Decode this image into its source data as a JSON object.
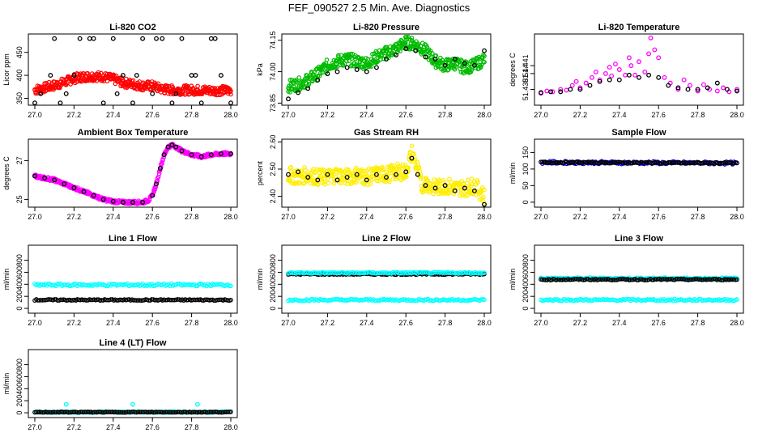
{
  "figure_title": "FEF_090527  2.5 Min. Ave. Diagnostics",
  "chart_data": [
    {
      "id": "co2",
      "type": "scatter",
      "title": "Li-820 CO2",
      "ylabel": "Licor ppm",
      "xlim": [
        27.0,
        28.0
      ],
      "ylim": [
        335,
        490
      ],
      "xticks": [
        "27.0",
        "27.2",
        "27.4",
        "27.6",
        "27.8",
        "28.0"
      ],
      "yticks": [
        "350",
        "400",
        "450"
      ],
      "series": [
        {
          "name": "raw",
          "color": "#ff0000",
          "style": "band",
          "x": [
            27.0,
            27.05,
            27.1,
            27.15,
            27.2,
            27.25,
            27.3,
            27.35,
            27.4,
            27.45,
            27.5,
            27.55,
            27.6,
            27.65,
            27.7,
            27.8,
            27.9,
            28.0
          ],
          "y": [
            368,
            373,
            378,
            385,
            393,
            397,
            398,
            397,
            392,
            384,
            381,
            377,
            377,
            370,
            368,
            368,
            367,
            367
          ],
          "spread": 10
        },
        {
          "name": "avg",
          "color": "#000000",
          "style": "points",
          "x": [
            27.0,
            27.03,
            27.1,
            27.13,
            27.2,
            27.23,
            27.3,
            27.35,
            27.4,
            27.45,
            27.5,
            27.55,
            27.6,
            27.65,
            27.7,
            27.75,
            27.8,
            27.85,
            27.9,
            27.95,
            28.0,
            27.08,
            27.16,
            27.28,
            27.42,
            27.52,
            27.62,
            27.72,
            27.82,
            27.92
          ],
          "y": [
            340,
            360,
            480,
            340,
            400,
            480,
            480,
            340,
            480,
            400,
            340,
            480,
            360,
            480,
            340,
            480,
            400,
            340,
            480,
            400,
            340,
            400,
            360,
            480,
            360,
            400,
            480,
            360,
            400,
            480
          ]
        }
      ]
    },
    {
      "id": "pressure",
      "type": "scatter",
      "title": "Li-820 Pressure",
      "ylabel": "kPa",
      "xlim": [
        27.0,
        28.0
      ],
      "ylim": [
        73.84,
        74.18
      ],
      "xticks": [
        "27.0",
        "27.2",
        "27.4",
        "27.6",
        "27.8",
        "28.0"
      ],
      "yticks": [
        "73.85",
        "74.00",
        "74.15"
      ],
      "series": [
        {
          "name": "raw",
          "color": "#00bb00",
          "style": "band",
          "x": [
            27.0,
            27.05,
            27.1,
            27.15,
            27.2,
            27.25,
            27.3,
            27.35,
            27.4,
            27.45,
            27.5,
            27.55,
            27.6,
            27.65,
            27.7,
            27.75,
            27.8,
            27.85,
            27.9,
            27.95,
            28.0
          ],
          "y": [
            73.93,
            73.94,
            73.96,
            73.99,
            74.03,
            74.05,
            74.06,
            74.05,
            74.04,
            74.07,
            74.09,
            74.11,
            74.14,
            74.13,
            74.1,
            74.05,
            74.03,
            74.04,
            74.02,
            74.03,
            74.06
          ],
          "spread": 0.03
        },
        {
          "name": "avg",
          "color": "#000000",
          "style": "points",
          "x": [
            27.0,
            27.05,
            27.1,
            27.15,
            27.2,
            27.25,
            27.3,
            27.35,
            27.4,
            27.45,
            27.5,
            27.55,
            27.6,
            27.65,
            27.7,
            27.75,
            27.8,
            27.85,
            27.9,
            27.95,
            28.0
          ],
          "y": [
            73.87,
            73.9,
            73.92,
            73.96,
            73.99,
            74.0,
            74.02,
            74.01,
            74.0,
            74.02,
            74.06,
            74.08,
            74.11,
            74.1,
            74.07,
            74.06,
            74.03,
            74.06,
            74.04,
            74.03,
            74.1
          ]
        }
      ]
    },
    {
      "id": "temperature",
      "type": "scatter",
      "title": "Li-820 Temperature",
      "ylabel": "degrees C",
      "xlim": [
        27.0,
        28.0
      ],
      "ylim": [
        51.436,
        51.445
      ],
      "xticks": [
        "27.0",
        "27.2",
        "27.4",
        "27.6",
        "27.8",
        "28.0"
      ],
      "yticks": [
        "51.438",
        "51.44",
        "51.441"
      ],
      "series": [
        {
          "name": "raw",
          "color": "#ff00ff",
          "style": "scatter",
          "x": [
            27.0,
            27.03,
            27.06,
            27.1,
            27.13,
            27.16,
            27.2,
            27.23,
            27.26,
            27.3,
            27.33,
            27.36,
            27.4,
            27.43,
            27.46,
            27.5,
            27.53,
            27.56,
            27.6,
            27.63,
            27.66,
            27.7,
            27.73,
            27.76,
            27.8,
            27.83,
            27.86,
            27.9,
            27.93,
            27.96,
            28.0,
            27.18,
            27.28,
            27.38,
            27.48,
            27.58,
            27.45,
            27.55,
            27.35
          ],
          "y": [
            51.4375,
            51.4378,
            51.4377,
            51.438,
            51.4379,
            51.4385,
            51.4382,
            51.4388,
            51.4395,
            51.4392,
            51.44,
            51.4397,
            51.4405,
            51.4398,
            51.441,
            51.4415,
            51.4402,
            51.4445,
            51.442,
            51.4395,
            51.4388,
            51.438,
            51.4392,
            51.4385,
            51.4378,
            51.4386,
            51.438,
            51.4378,
            51.4382,
            51.4377,
            51.438,
            51.439,
            51.4402,
            51.4412,
            51.4398,
            51.443,
            51.442,
            51.4425,
            51.4408
          ]
        },
        {
          "name": "avg",
          "color": "#000000",
          "style": "points",
          "x": [
            27.0,
            27.05,
            27.1,
            27.15,
            27.2,
            27.25,
            27.3,
            27.35,
            27.4,
            27.45,
            27.5,
            27.55,
            27.6,
            27.65,
            27.7,
            27.75,
            27.8,
            27.85,
            27.9,
            27.95,
            28.0
          ],
          "y": [
            51.4376,
            51.4377,
            51.4377,
            51.438,
            51.438,
            51.4385,
            51.439,
            51.4392,
            51.4392,
            51.4398,
            51.4395,
            51.4398,
            51.4395,
            51.4385,
            51.4382,
            51.438,
            51.438,
            51.4382,
            51.4388,
            51.438,
            51.4378
          ]
        }
      ]
    },
    {
      "id": "box_temp",
      "type": "scatter",
      "title": "Ambient Box Temperature",
      "ylabel": "degrees C",
      "xlim": [
        27.0,
        28.0
      ],
      "ylim": [
        24.6,
        28.1
      ],
      "xticks": [
        "27.0",
        "27.2",
        "27.4",
        "27.6",
        "27.8",
        "28.0"
      ],
      "yticks": [
        "25",
        "27"
      ],
      "series": [
        {
          "name": "raw",
          "color": "#ff00ff",
          "style": "band",
          "x": [
            27.0,
            27.05,
            27.1,
            27.15,
            27.2,
            27.25,
            27.3,
            27.35,
            27.4,
            27.45,
            27.5,
            27.55,
            27.58,
            27.6,
            27.62,
            27.64,
            27.66,
            27.68,
            27.7,
            27.72,
            27.75,
            27.8,
            27.85,
            27.9,
            27.95,
            28.0
          ],
          "y": [
            26.2,
            26.1,
            26.0,
            25.8,
            25.6,
            25.4,
            25.2,
            25.0,
            24.9,
            24.85,
            24.85,
            24.85,
            24.95,
            25.2,
            25.8,
            26.6,
            27.3,
            27.7,
            27.8,
            27.7,
            27.5,
            27.3,
            27.2,
            27.3,
            27.35,
            27.35
          ],
          "spread": 0.08
        },
        {
          "name": "avg",
          "color": "#000000",
          "style": "points",
          "x": [
            27.0,
            27.05,
            27.1,
            27.15,
            27.2,
            27.25,
            27.3,
            27.35,
            27.4,
            27.45,
            27.5,
            27.55,
            27.6,
            27.62,
            27.64,
            27.66,
            27.68,
            27.7,
            27.72,
            27.75,
            27.8,
            27.85,
            27.9,
            27.95,
            28.0
          ],
          "y": [
            26.2,
            26.1,
            26.0,
            25.8,
            25.6,
            25.4,
            25.2,
            25.0,
            24.9,
            24.85,
            24.85,
            24.85,
            25.2,
            25.8,
            26.6,
            27.3,
            27.7,
            27.8,
            27.7,
            27.5,
            27.3,
            27.2,
            27.3,
            27.35,
            27.35
          ]
        }
      ]
    },
    {
      "id": "rh",
      "type": "scatter",
      "title": "Gas Stream RH",
      "ylabel": "percent",
      "xlim": [
        27.0,
        28.0
      ],
      "ylim": [
        2.36,
        2.61
      ],
      "xticks": [
        "27.0",
        "27.2",
        "27.4",
        "27.6",
        "27.8",
        "28.0"
      ],
      "yticks": [
        "2.40",
        "2.50",
        "2.60"
      ],
      "series": [
        {
          "name": "raw",
          "color": "#ffee00",
          "style": "band",
          "x": [
            27.0,
            27.05,
            27.1,
            27.15,
            27.2,
            27.25,
            27.3,
            27.35,
            27.4,
            27.45,
            27.5,
            27.55,
            27.6,
            27.63,
            27.66,
            27.68,
            27.7,
            27.75,
            27.8,
            27.85,
            27.9,
            27.95,
            28.0
          ],
          "y": [
            2.48,
            2.47,
            2.48,
            2.47,
            2.47,
            2.48,
            2.47,
            2.48,
            2.47,
            2.48,
            2.48,
            2.49,
            2.49,
            2.56,
            2.5,
            2.44,
            2.45,
            2.43,
            2.44,
            2.43,
            2.43,
            2.44,
            2.4
          ],
          "spread": 0.03
        },
        {
          "name": "avg",
          "color": "#000000",
          "style": "points",
          "x": [
            27.0,
            27.05,
            27.1,
            27.15,
            27.2,
            27.25,
            27.3,
            27.35,
            27.4,
            27.45,
            27.5,
            27.55,
            27.6,
            27.63,
            27.66,
            27.7,
            27.75,
            27.8,
            27.85,
            27.9,
            27.95,
            28.0
          ],
          "y": [
            2.48,
            2.49,
            2.47,
            2.46,
            2.48,
            2.46,
            2.47,
            2.48,
            2.46,
            2.48,
            2.47,
            2.48,
            2.49,
            2.54,
            2.48,
            2.44,
            2.43,
            2.44,
            2.42,
            2.43,
            2.42,
            2.37
          ]
        }
      ]
    },
    {
      "id": "sample_flow",
      "type": "scatter",
      "title": "Sample Flow",
      "ylabel": "ml/min",
      "xlim": [
        27.0,
        28.0
      ],
      "ylim": [
        -15,
        190
      ],
      "xticks": [
        "27.0",
        "27.2",
        "27.4",
        "27.6",
        "27.8",
        "28.0"
      ],
      "yticks": [
        "0",
        "50",
        "100",
        "150"
      ],
      "series": [
        {
          "name": "raw",
          "color": "#0000ff",
          "style": "line",
          "x": [
            27.0,
            28.0
          ],
          "y": [
            120,
            118
          ],
          "spread": 4
        },
        {
          "name": "avg",
          "color": "#000000",
          "style": "line",
          "x": [
            27.0,
            28.0
          ],
          "y": [
            120,
            118
          ],
          "spread": 2
        }
      ]
    },
    {
      "id": "line1",
      "type": "scatter",
      "title": "Line 1 Flow",
      "ylabel": "ml/min",
      "xlim": [
        27.0,
        28.0
      ],
      "ylim": [
        -80,
        1050
      ],
      "xticks": [
        "27.0",
        "27.2",
        "27.4",
        "27.6",
        "27.8",
        "28.0"
      ],
      "yticks": [
        "0",
        "200",
        "400",
        "600",
        "800"
      ],
      "series": [
        {
          "name": "raw",
          "color": "#00ffff",
          "style": "line",
          "x": [
            27.0,
            28.0
          ],
          "y": [
            390,
            390
          ],
          "spread": 20
        },
        {
          "name": "avg",
          "color": "#000000",
          "style": "line",
          "x": [
            27.0,
            28.0
          ],
          "y": [
            140,
            140
          ],
          "spread": 10
        }
      ]
    },
    {
      "id": "line2",
      "type": "scatter",
      "title": "Line 2 Flow",
      "ylabel": "ml/min",
      "xlim": [
        27.0,
        28.0
      ],
      "ylim": [
        -80,
        1050
      ],
      "xticks": [
        "27.0",
        "27.2",
        "27.4",
        "27.6",
        "27.8",
        "28.0"
      ],
      "yticks": [
        "0",
        "200",
        "400",
        "600",
        "800"
      ],
      "series": [
        {
          "name": "avg",
          "color": "#000000",
          "style": "line",
          "x": [
            27.0,
            28.0
          ],
          "y": [
            570,
            570
          ],
          "spread": 10
        },
        {
          "name": "raw",
          "color": "#00ffff",
          "style": "line",
          "x": [
            27.0,
            28.0
          ],
          "y": [
            140,
            140
          ],
          "spread": 15
        },
        {
          "name": "raw_upper",
          "color": "#00ffff",
          "style": "line",
          "x": [
            27.0,
            28.0
          ],
          "y": [
            590,
            590
          ],
          "spread": 12
        }
      ]
    },
    {
      "id": "line3",
      "type": "scatter",
      "title": "Line 3 Flow",
      "ylabel": "ml/min",
      "xlim": [
        27.0,
        28.0
      ],
      "ylim": [
        -80,
        1050
      ],
      "xticks": [
        "27.0",
        "27.2",
        "27.4",
        "27.6",
        "27.8",
        "28.0"
      ],
      "yticks": [
        "0",
        "200",
        "400",
        "600",
        "800"
      ],
      "series": [
        {
          "name": "raw_upper",
          "color": "#00ffff",
          "style": "line",
          "x": [
            27.0,
            28.0
          ],
          "y": [
            500,
            500
          ],
          "spread": 12
        },
        {
          "name": "avg",
          "color": "#000000",
          "style": "line",
          "x": [
            27.0,
            28.0
          ],
          "y": [
            480,
            480
          ],
          "spread": 10
        },
        {
          "name": "raw",
          "color": "#00ffff",
          "style": "line",
          "x": [
            27.0,
            28.0
          ],
          "y": [
            140,
            140
          ],
          "spread": 15
        }
      ]
    },
    {
      "id": "line4",
      "type": "scatter",
      "title": "Line 4 (LT) Flow",
      "ylabel": "ml/min",
      "xlim": [
        27.0,
        28.0
      ],
      "ylim": [
        -80,
        1050
      ],
      "xticks": [
        "27.0",
        "27.2",
        "27.4",
        "27.6",
        "27.8",
        "28.0"
      ],
      "yticks": [
        "0",
        "200",
        "400",
        "600",
        "800"
      ],
      "series": [
        {
          "name": "raw",
          "color": "#00ffff",
          "style": "line",
          "x": [
            27.0,
            28.0
          ],
          "y": [
            10,
            10
          ],
          "spread": 10
        },
        {
          "name": "avg",
          "color": "#000000",
          "style": "line",
          "x": [
            27.0,
            28.0
          ],
          "y": [
            10,
            10
          ],
          "spread": 5
        },
        {
          "name": "spikes",
          "color": "#00ffff",
          "style": "points",
          "x": [
            27.16,
            27.5,
            27.83
          ],
          "y": [
            140,
            140,
            140
          ]
        }
      ]
    }
  ]
}
